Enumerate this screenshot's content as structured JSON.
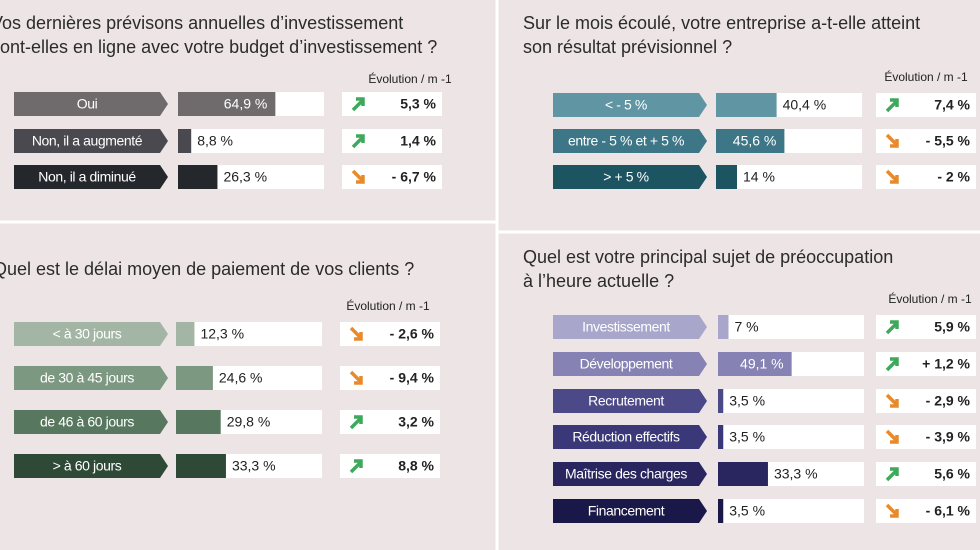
{
  "chart_data": [
    {
      "type": "hbar",
      "title": [
        "Vos dernières prévisons annuelles d’investissement",
        "sont-elles en ligne avec votre budget d’investissement ?"
      ],
      "evolution_title": "Évolution / m -1",
      "categories": [
        "Oui",
        "Non, il a augmenté",
        "Non, il a diminué"
      ],
      "values": [
        64.9,
        8.8,
        26.3
      ],
      "value_labels": [
        "64,9 %",
        "8,8 %",
        "26,3 %"
      ],
      "evolution_values": [
        5.3,
        1.4,
        -6.7
      ],
      "evolution_labels": [
        "5,3 %",
        "1,4 %",
        "- 6,7 %"
      ],
      "colors": [
        "#6f6b6d",
        "#4a494f",
        "#24272c"
      ]
    },
    {
      "type": "hbar",
      "title": [
        "Sur le mois écoulé, votre entreprise a-t-elle atteint",
        "son résultat prévisionnel ?"
      ],
      "evolution_title": "Évolution / m -1",
      "categories": [
        "< - 5 %",
        "entre - 5 % et + 5 %",
        "> + 5 %"
      ],
      "values": [
        40.4,
        45.6,
        14
      ],
      "value_labels": [
        "40,4 %",
        "45,6 %",
        "14 %"
      ],
      "evolution_values": [
        7.4,
        -5.5,
        -2
      ],
      "evolution_labels": [
        "7,4 %",
        "- 5,5 %",
        "- 2 %"
      ],
      "colors": [
        "#6096a4",
        "#3d7686",
        "#1d5462"
      ]
    },
    {
      "type": "hbar",
      "title": [
        "Quel est le délai moyen de paiement de vos clients ?"
      ],
      "evolution_title": "Évolution / m -1",
      "categories": [
        "< à 30 jours",
        "de 30 à 45 jours",
        "de 46 à 60 jours",
        "> à 60 jours"
      ],
      "values": [
        12.3,
        24.6,
        29.8,
        33.3
      ],
      "value_labels": [
        "12,3 %",
        "24,6 %",
        "29,8 %",
        "33,3 %"
      ],
      "evolution_values": [
        -2.6,
        -9.4,
        3.2,
        8.8
      ],
      "evolution_labels": [
        "- 2,6 %",
        "- 9,4 %",
        "3,2 %",
        "8,8 %"
      ],
      "colors": [
        "#a3b6a5",
        "#7d9881",
        "#57785e",
        "#2f4937"
      ]
    },
    {
      "type": "hbar",
      "title": [
        "Quel est votre principal sujet de préoccupation",
        "à l’heure actuelle ?"
      ],
      "evolution_title": "Évolution / m -1",
      "categories": [
        "Investissement",
        "Développement",
        "Recrutement",
        "Réduction effectifs",
        "Maîtrise des charges",
        "Financement"
      ],
      "values": [
        7,
        49.1,
        3.5,
        3.5,
        33.3,
        3.5
      ],
      "value_labels": [
        "7 %",
        "49,1 %",
        "3,5 %",
        "3,5 %",
        "33,3 %",
        "3,5 %"
      ],
      "evolution_values": [
        5.9,
        1.2,
        -2.9,
        -3.9,
        5.6,
        -6.1
      ],
      "evolution_labels": [
        "5,9 %",
        "+ 1,2 %",
        "- 2,9 %",
        "- 3,9 %",
        "5,6 %",
        "- 6,1 %"
      ],
      "colors": [
        "#a8a6cb",
        "#8682b4",
        "#4c4989",
        "#3b3879",
        "#29265f",
        "#1a1848"
      ]
    }
  ]
}
